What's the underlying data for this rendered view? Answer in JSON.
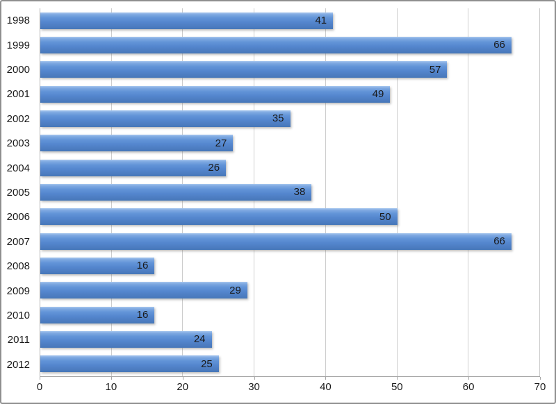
{
  "chart_data": {
    "type": "bar",
    "orientation": "horizontal",
    "title": "",
    "xlabel": "",
    "ylabel": "",
    "categories": [
      "1998",
      "1999",
      "2000",
      "2001",
      "2002",
      "2003",
      "2004",
      "2005",
      "2006",
      "2007",
      "2008",
      "2009",
      "2010",
      "2011",
      "2012"
    ],
    "values": [
      41,
      66,
      57,
      49,
      35,
      27,
      26,
      38,
      50,
      66,
      16,
      29,
      16,
      24,
      25
    ],
    "xlim": [
      0,
      70
    ],
    "xticks": [
      0,
      10,
      20,
      30,
      40,
      50,
      60,
      70
    ],
    "grid": true,
    "legend": false,
    "data_label_position": "inside-end",
    "colors": {
      "bar_fill": "#5486ce",
      "bar_gradient_top": "#a6c6ef",
      "bar_gradient_bottom": "#4677b8",
      "gridline": "#cdcdcd",
      "axis_line": "#a6a6a6",
      "label_text": "#1a1a1a",
      "frame_border": "#8f8f8f",
      "background": "#ffffff"
    }
  }
}
